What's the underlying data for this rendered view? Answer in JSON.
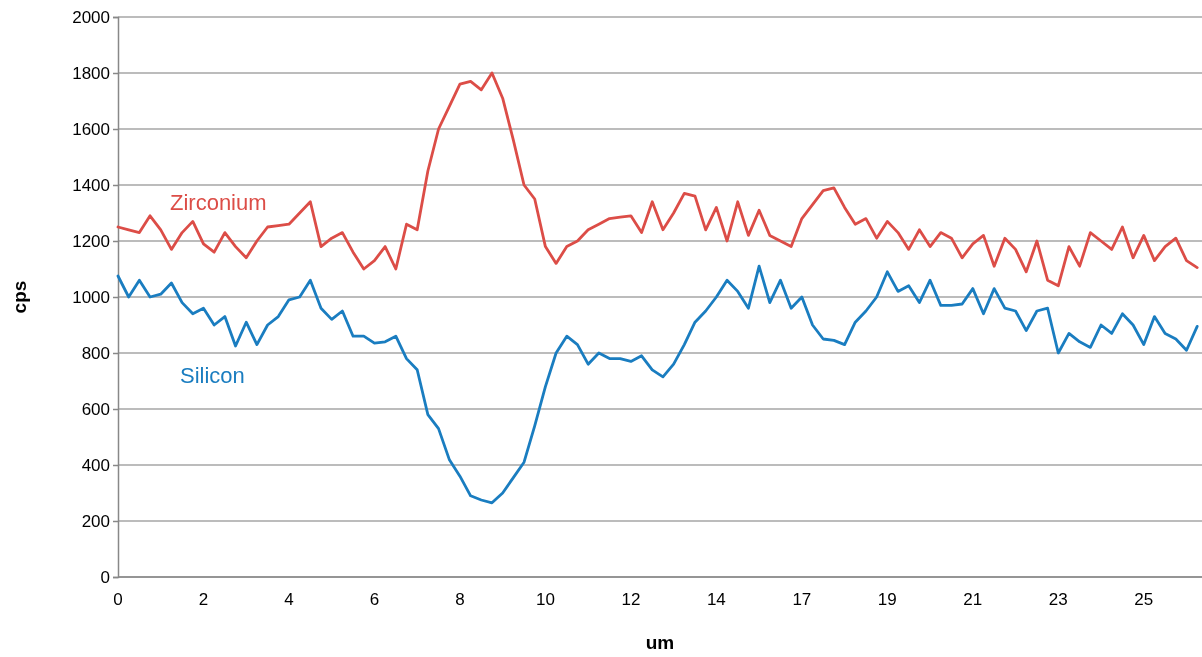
{
  "chart_data": {
    "type": "line",
    "xlabel": "um",
    "ylabel": "cps",
    "categories": [
      "0",
      null,
      null,
      null,
      null,
      null,
      null,
      null,
      "2",
      null,
      null,
      null,
      null,
      null,
      null,
      null,
      "4",
      null,
      null,
      null,
      null,
      null,
      null,
      null,
      "6",
      null,
      null,
      null,
      null,
      null,
      null,
      null,
      "8",
      null,
      null,
      null,
      null,
      null,
      null,
      null,
      "10",
      null,
      null,
      null,
      null,
      null,
      null,
      null,
      "12",
      null,
      null,
      null,
      null,
      null,
      null,
      null,
      "14",
      null,
      null,
      null,
      null,
      null,
      null,
      null,
      "17",
      null,
      null,
      null,
      null,
      null,
      null,
      null,
      "19",
      null,
      null,
      null,
      null,
      null,
      null,
      null,
      "21",
      null,
      null,
      null,
      null,
      null,
      null,
      null,
      "23",
      null,
      null,
      null,
      null,
      null,
      null,
      null,
      "25",
      null,
      null,
      null,
      null,
      null
    ],
    "ylim": [
      0,
      2000
    ],
    "yticks": [
      0,
      200,
      400,
      600,
      800,
      1000,
      1200,
      1400,
      1600,
      1800,
      2000
    ],
    "grid": "y",
    "legend": false,
    "marker": "none",
    "line_style": "solid",
    "series": [
      {
        "name": "Zirconium",
        "color": "#dc4d47",
        "values": [
          1250,
          1240,
          1230,
          1290,
          1240,
          1170,
          1230,
          1270,
          1190,
          1160,
          1230,
          1180,
          1140,
          1200,
          1250,
          1255,
          1260,
          1300,
          1340,
          1180,
          1210,
          1230,
          1160,
          1100,
          1130,
          1180,
          1100,
          1260,
          1240,
          1450,
          1600,
          1680,
          1760,
          1770,
          1740,
          1800,
          1710,
          1560,
          1400,
          1350,
          1180,
          1120,
          1180,
          1200,
          1240,
          1260,
          1280,
          1285,
          1290,
          1230,
          1340,
          1240,
          1300,
          1370,
          1360,
          1240,
          1320,
          1200,
          1340,
          1220,
          1310,
          1220,
          1200,
          1180,
          1280,
          1330,
          1380,
          1390,
          1320,
          1260,
          1280,
          1210,
          1270,
          1230,
          1170,
          1240,
          1180,
          1230,
          1210,
          1140,
          1190,
          1220,
          1110,
          1210,
          1170,
          1090,
          1200,
          1060,
          1040,
          1180,
          1110,
          1230,
          1200,
          1170,
          1250,
          1140,
          1220,
          1130,
          1180,
          1210,
          1130,
          1105
        ]
      },
      {
        "name": "Silicon",
        "color": "#1a7dc0",
        "values": [
          1075,
          1000,
          1060,
          1000,
          1010,
          1050,
          980,
          940,
          960,
          900,
          930,
          825,
          910,
          830,
          900,
          930,
          990,
          1000,
          1060,
          960,
          920,
          950,
          860,
          860,
          835,
          840,
          860,
          780,
          740,
          580,
          530,
          420,
          360,
          290,
          275,
          265,
          300,
          355,
          410,
          540,
          680,
          800,
          860,
          830,
          760,
          800,
          780,
          780,
          770,
          790,
          740,
          715,
          760,
          830,
          910,
          950,
          1000,
          1060,
          1020,
          960,
          1110,
          980,
          1060,
          960,
          1000,
          900,
          850,
          845,
          830,
          910,
          950,
          1000,
          1090,
          1020,
          1040,
          980,
          1060,
          970,
          970,
          975,
          1030,
          940,
          1030,
          960,
          950,
          880,
          950,
          960,
          800,
          870,
          840,
          820,
          900,
          870,
          940,
          900,
          830,
          930,
          870,
          850,
          810,
          895
        ]
      }
    ]
  }
}
